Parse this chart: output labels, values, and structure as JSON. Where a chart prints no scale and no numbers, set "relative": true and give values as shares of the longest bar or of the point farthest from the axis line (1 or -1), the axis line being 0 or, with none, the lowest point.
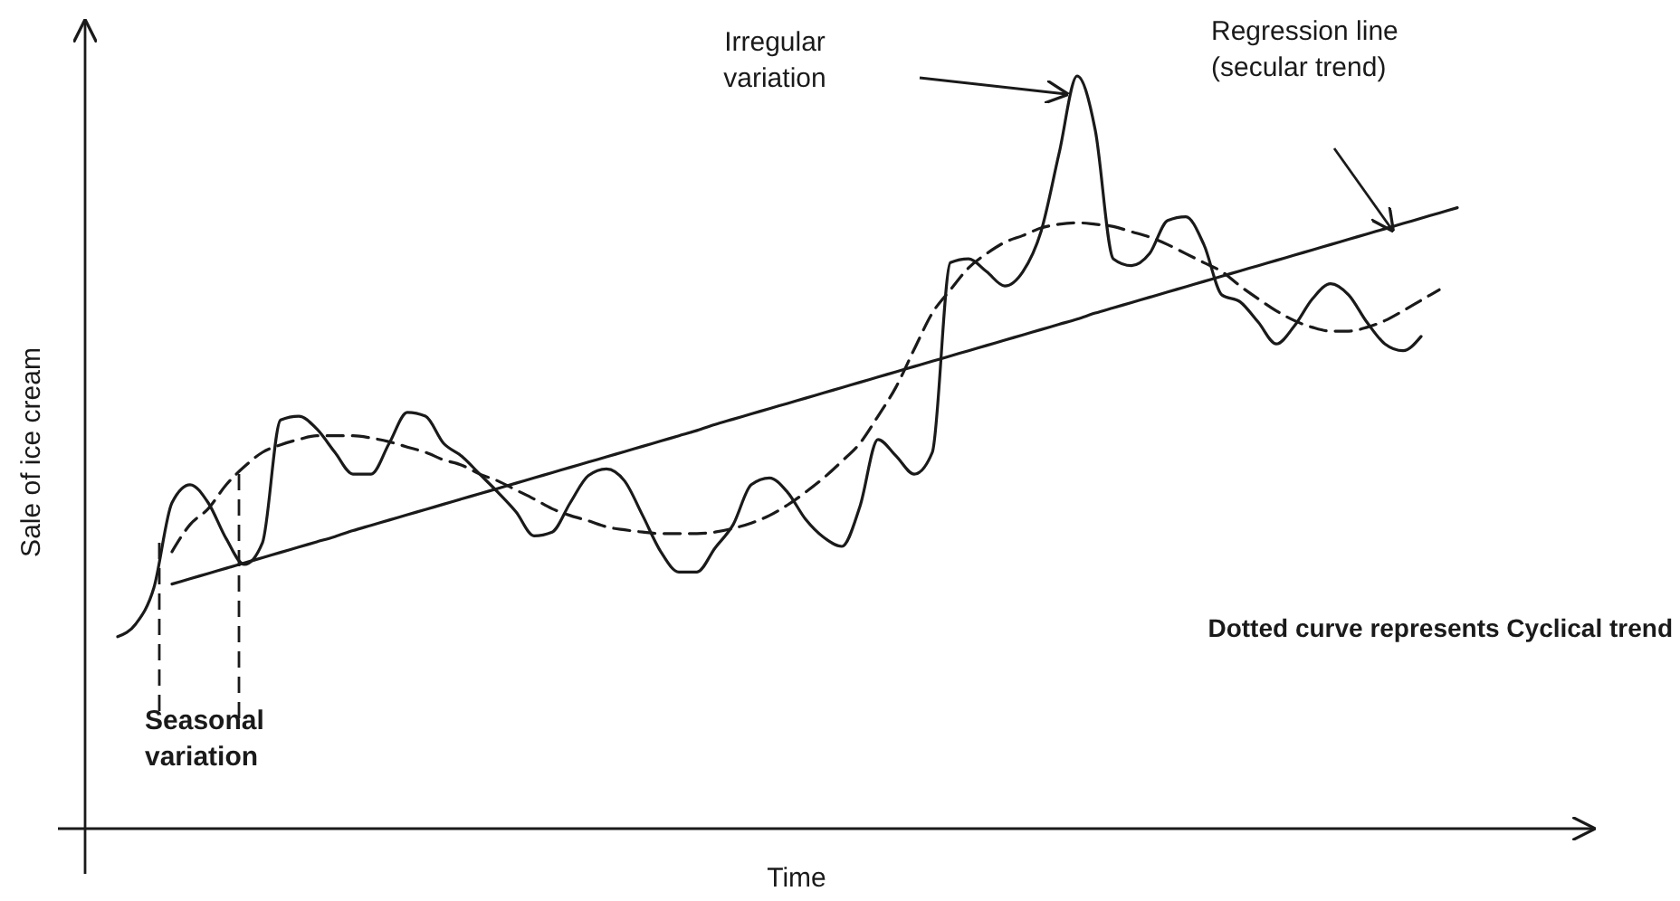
{
  "chart_data": {
    "type": "line",
    "relative": true,
    "xlabel": "Time",
    "ylabel": "Sale of ice cream",
    "grid": false,
    "marker": "none",
    "categories": [
      null,
      null,
      null,
      null,
      null,
      null,
      null,
      null,
      null,
      null,
      null,
      null,
      null,
      null,
      null,
      null,
      null,
      null,
      null,
      null,
      null,
      null,
      null,
      null,
      null,
      null,
      null,
      null,
      null,
      null,
      null,
      null,
      null,
      null,
      null,
      null,
      null,
      null,
      null,
      null,
      null,
      null,
      null,
      null,
      null,
      null,
      null,
      null,
      null,
      null,
      null,
      null,
      null,
      null,
      null,
      null,
      null,
      null,
      null,
      null,
      null,
      null,
      null,
      null,
      null,
      null,
      null,
      null,
      null,
      null,
      null,
      null,
      null,
      null,
      null
    ],
    "series": [
      {
        "color": "#1a1a1a",
        "line_style": "solid",
        "values": [
          0.255,
          0.272,
          0.32,
          0.433,
          0.457,
          0.433,
          0.385,
          0.351,
          0.38,
          0.543,
          0.548,
          0.531,
          0.5,
          0.471,
          0.471,
          0.512,
          0.553,
          0.548,
          0.512,
          0.495,
          0.471,
          0.447,
          0.421,
          0.389,
          0.394,
          0.433,
          0.469,
          0.478,
          0.462,
          0.416,
          0.368,
          0.341,
          0.341,
          0.373,
          0.404,
          0.457,
          0.466,
          0.447,
          0.411,
          0.387,
          0.375,
          0.428,
          0.517,
          0.495,
          0.471,
          0.5,
          0.752,
          0.757,
          0.74,
          0.721,
          0.74,
          0.793,
          0.897,
          1,
          0.928,
          0.757,
          0.748,
          0.764,
          0.808,
          0.813,
          0.776,
          0.709,
          0.7,
          0.673,
          0.644,
          0.668,
          0.704,
          0.724,
          0.709,
          0.673,
          0.644,
          0.635,
          0.654,
          null,
          null
        ]
      },
      {
        "color": "#1a1a1a",
        "line_style": "dashed",
        "values": [
          null,
          null,
          null,
          0.368,
          0.404,
          0.425,
          0.457,
          0.481,
          0.5,
          0.51,
          0.517,
          0.522,
          0.522,
          0.522,
          0.519,
          0.514,
          0.507,
          0.5,
          0.49,
          0.483,
          0.471,
          0.462,
          0.45,
          0.438,
          0.425,
          0.416,
          0.409,
          0.401,
          0.397,
          0.394,
          0.392,
          0.392,
          0.392,
          0.394,
          0.399,
          0.406,
          0.416,
          0.43,
          0.447,
          0.466,
          0.488,
          0.512,
          0.548,
          0.587,
          0.637,
          0.685,
          0.716,
          0.745,
          0.764,
          0.779,
          0.788,
          0.798,
          0.803,
          0.805,
          0.803,
          0.8,
          0.793,
          0.786,
          0.776,
          0.764,
          0.752,
          0.74,
          0.721,
          0.704,
          0.688,
          0.675,
          0.666,
          0.661,
          0.661,
          0.666,
          0.675,
          0.688,
          0.702,
          0.716,
          null
        ]
      },
      {
        "color": "#1a1a1a",
        "line_style": "solid",
        "values": [
          null,
          null,
          null,
          0.325,
          0.332,
          0.339,
          0.346,
          0.353,
          0.36,
          0.367,
          0.374,
          0.381,
          0.388,
          0.396,
          0.403,
          0.41,
          0.417,
          0.424,
          0.431,
          0.438,
          0.445,
          0.452,
          0.459,
          0.466,
          0.473,
          0.48,
          0.487,
          0.494,
          0.501,
          0.508,
          0.515,
          0.522,
          0.529,
          0.537,
          0.544,
          0.551,
          0.558,
          0.565,
          0.572,
          0.579,
          0.586,
          0.593,
          0.6,
          0.607,
          0.614,
          0.621,
          0.628,
          0.635,
          0.642,
          0.649,
          0.656,
          0.663,
          0.67,
          0.677,
          0.685,
          0.692,
          0.699,
          0.706,
          0.713,
          0.72,
          0.727,
          0.734,
          0.741,
          0.748,
          0.755,
          0.762,
          0.769,
          0.776,
          0.783,
          0.79,
          0.797,
          0.804,
          0.811,
          0.818,
          0.825
        ]
      }
    ],
    "annotations": [
      "Irregular variation",
      "Regression line (secular trend)",
      "Dotted curve represents Cyclical trend",
      "Seasonal variation"
    ]
  }
}
